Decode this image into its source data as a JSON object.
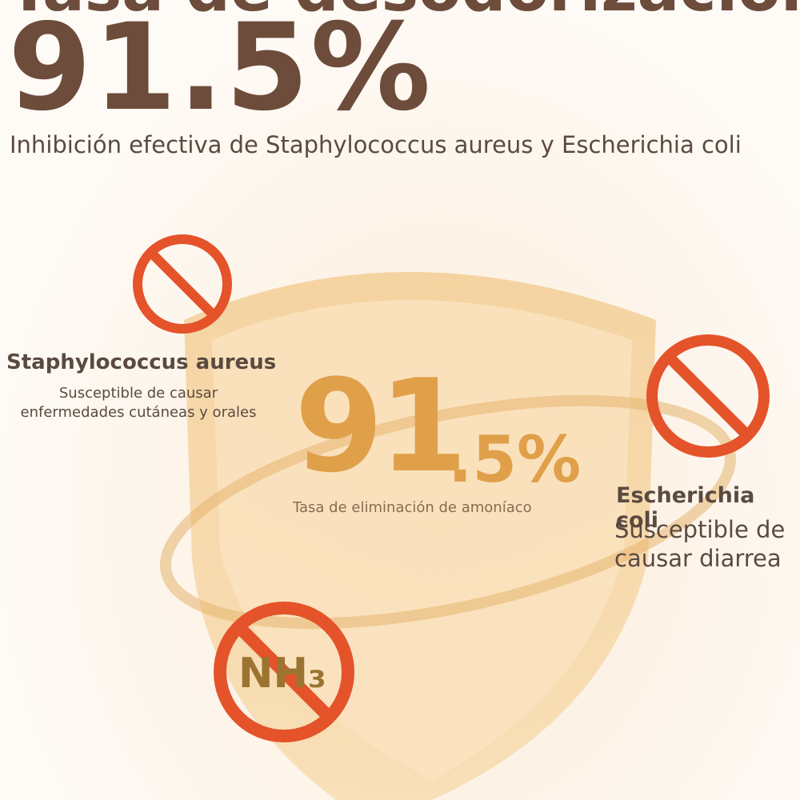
{
  "header": {
    "cropped_title": "Tasa de desodorización",
    "big_value": "91.5%",
    "subtitle": "Inhibición efectiva de Staphylococcus aureus y Escherichia coli"
  },
  "shield": {
    "value_main": "91",
    "value_rest": ".5%",
    "caption": "Tasa de eliminación de amoníaco"
  },
  "items": [
    {
      "name": "Staphylococcus aureus",
      "description": "Susceptible de causar enfermedades cutáneas y orales"
    },
    {
      "name": "Escherichia coli",
      "description": "Susceptible de causar diarrea"
    },
    {
      "name": "NH₃"
    }
  ]
}
